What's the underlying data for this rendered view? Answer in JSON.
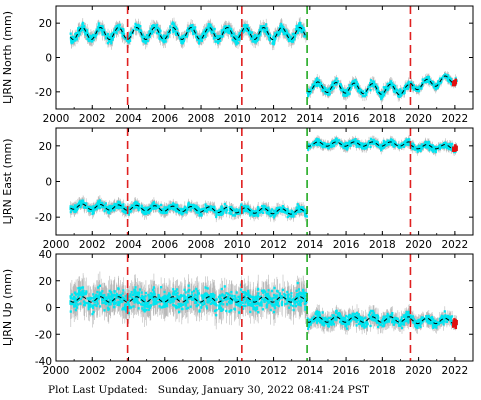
{
  "footer": {
    "label": "Plot Last Updated:",
    "timestamp": "Sunday, January 30, 2022 08:41:24 PST"
  },
  "colors": {
    "points": "#00e5f0",
    "errorbars": "#b9b9b9",
    "model": "#000000",
    "recent": "#e01010",
    "event_red": "#e02020",
    "event_green": "#22aa22"
  },
  "chart_data": [
    {
      "type": "scatter",
      "ylabel": "LJRN North (mm)",
      "xlim": [
        2000,
        2023
      ],
      "ylim": [
        -30,
        30
      ],
      "xticks": [
        2000,
        2002,
        2004,
        2006,
        2008,
        2010,
        2012,
        2014,
        2016,
        2018,
        2020,
        2022
      ],
      "yticks": [
        -20,
        0,
        20
      ],
      "grid": false,
      "event_lines": [
        {
          "x": 2003.95,
          "color": "red",
          "style": "dashed"
        },
        {
          "x": 2010.25,
          "color": "red",
          "style": "dashed"
        },
        {
          "x": 2013.85,
          "color": "green",
          "style": "dashed"
        },
        {
          "x": 2019.55,
          "color": "red",
          "style": "dashed"
        }
      ],
      "segments": [
        {
          "x": [
            2000.8,
            2013.85
          ],
          "mean": 14,
          "amplitude": 3.5,
          "scatter": 3
        },
        {
          "x": [
            2013.85,
            2019.55
          ],
          "mean": [
            -17,
            -19
          ],
          "amplitude": 3,
          "scatter": 2.5
        },
        {
          "x": [
            2019.55,
            2022.1
          ],
          "mean": [
            -17,
            -12
          ],
          "amplitude": 2.5,
          "scatter": 2
        }
      ]
    },
    {
      "type": "scatter",
      "ylabel": "LJRN East (mm)",
      "xlim": [
        2000,
        2023
      ],
      "ylim": [
        -30,
        30
      ],
      "xticks": [
        2000,
        2002,
        2004,
        2006,
        2008,
        2010,
        2012,
        2014,
        2016,
        2018,
        2020,
        2022
      ],
      "yticks": [
        -20,
        0,
        20
      ],
      "grid": false,
      "event_lines": [
        {
          "x": 2003.95,
          "color": "red",
          "style": "dashed"
        },
        {
          "x": 2010.25,
          "color": "red",
          "style": "dashed"
        },
        {
          "x": 2013.85,
          "color": "green",
          "style": "dashed"
        },
        {
          "x": 2019.55,
          "color": "red",
          "style": "dashed"
        }
      ],
      "segments": [
        {
          "x": [
            2000.8,
            2013.85
          ],
          "mean": [
            -14,
            -17
          ],
          "amplitude": 1.5,
          "scatter": 2.5
        },
        {
          "x": [
            2013.85,
            2019.55
          ],
          "mean": 21,
          "amplitude": 1.2,
          "scatter": 2
        },
        {
          "x": [
            2019.55,
            2022.1
          ],
          "mean": 19.5,
          "amplitude": 1.2,
          "scatter": 2
        }
      ]
    },
    {
      "type": "scatter",
      "ylabel": "LJRN Up (mm)",
      "xlim": [
        2000,
        2023
      ],
      "ylim": [
        -40,
        40
      ],
      "xticks": [
        2000,
        2002,
        2004,
        2006,
        2008,
        2010,
        2012,
        2014,
        2016,
        2018,
        2020,
        2022
      ],
      "yticks": [
        -40,
        -20,
        0,
        20,
        40
      ],
      "grid": false,
      "event_lines": [
        {
          "x": 2003.95,
          "color": "red",
          "style": "dashed"
        },
        {
          "x": 2010.25,
          "color": "red",
          "style": "dashed"
        },
        {
          "x": 2013.85,
          "color": "green",
          "style": "dashed"
        },
        {
          "x": 2019.55,
          "color": "red",
          "style": "dashed"
        }
      ],
      "segments": [
        {
          "x": [
            2000.8,
            2013.85
          ],
          "mean": 6,
          "amplitude": 2,
          "scatter": 9
        },
        {
          "x": [
            2013.85,
            2019.55
          ],
          "mean": -9,
          "amplitude": 2,
          "scatter": 5
        },
        {
          "x": [
            2019.55,
            2022.1
          ],
          "mean": -10,
          "amplitude": 2,
          "scatter": 4
        }
      ]
    }
  ]
}
